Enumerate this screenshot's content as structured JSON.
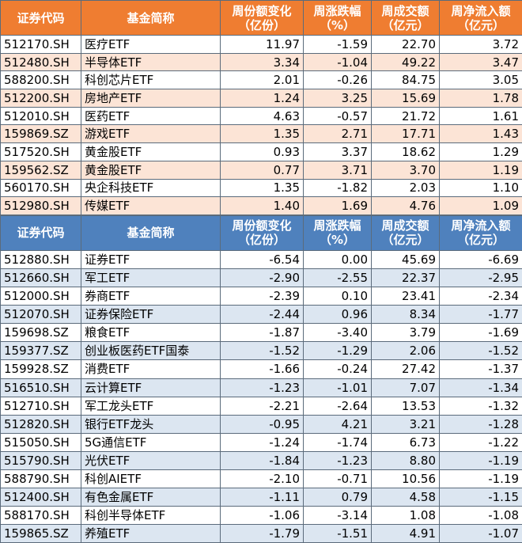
{
  "top_table": {
    "headers": [
      "证券代码",
      "基金简称",
      "周份额变化\n（亿份）",
      "周涨跌幅\n（%）",
      "周成交额\n（亿元）",
      "周净流入额\n（亿元）"
    ],
    "rows": [
      [
        "512170.SH",
        "医疗ETF",
        "11.97",
        "-1.59",
        "22.70",
        "3.72"
      ],
      [
        "512480.SH",
        "半导体ETF",
        "3.34",
        "-1.04",
        "49.22",
        "3.47"
      ],
      [
        "588200.SH",
        "科创芯片ETF",
        "2.01",
        "-0.26",
        "84.75",
        "3.05"
      ],
      [
        "512200.SH",
        "房地产ETF",
        "1.24",
        "3.25",
        "15.69",
        "1.78"
      ],
      [
        "512010.SH",
        "医药ETF",
        "4.63",
        "-0.57",
        "21.72",
        "1.61"
      ],
      [
        "159869.SZ",
        "游戏ETF",
        "1.35",
        "2.71",
        "17.71",
        "1.43"
      ],
      [
        "517520.SH",
        "黄金股ETF",
        "0.93",
        "3.37",
        "18.62",
        "1.29"
      ],
      [
        "159562.SZ",
        "黄金股ETF",
        "0.77",
        "3.71",
        "3.70",
        "1.19"
      ],
      [
        "560170.SH",
        "央企科技ETF",
        "1.35",
        "-1.82",
        "2.03",
        "1.10"
      ],
      [
        "512980.SH",
        "传媒ETF",
        "1.40",
        "1.69",
        "4.76",
        "1.09"
      ]
    ]
  },
  "bottom_table": {
    "headers": [
      "证券代码",
      "基金简称",
      "周份额变化\n（亿份）",
      "周涨跌幅\n（%）",
      "周成交额\n（亿元）",
      "周净流入额\n（亿元）"
    ],
    "rows": [
      [
        "512880.SH",
        "证券ETF",
        "-6.54",
        "0.00",
        "45.69",
        "-6.69"
      ],
      [
        "512660.SH",
        "军工ETF",
        "-2.90",
        "-2.55",
        "22.37",
        "-2.95"
      ],
      [
        "512000.SH",
        "券商ETF",
        "-2.39",
        "0.10",
        "23.41",
        "-2.34"
      ],
      [
        "512070.SH",
        "证券保险ETF",
        "-2.44",
        "0.96",
        "8.34",
        "-1.77"
      ],
      [
        "159698.SZ",
        "粮食ETF",
        "-1.87",
        "-3.40",
        "3.79",
        "-1.69"
      ],
      [
        "159377.SZ",
        "创业板医药ETF国泰",
        "-1.52",
        "-1.29",
        "2.06",
        "-1.52"
      ],
      [
        "159928.SZ",
        "消费ETF",
        "-1.66",
        "-0.24",
        "27.42",
        "-1.37"
      ],
      [
        "516510.SH",
        "云计算ETF",
        "-1.23",
        "-1.01",
        "7.07",
        "-1.34"
      ],
      [
        "512710.SH",
        "军工龙头ETF",
        "-2.21",
        "-2.64",
        "13.53",
        "-1.32"
      ],
      [
        "512820.SH",
        "银行ETF龙头",
        "-0.95",
        "4.21",
        "3.21",
        "-1.28"
      ],
      [
        "515050.SH",
        "5G通信ETF",
        "-1.24",
        "-1.74",
        "6.73",
        "-1.22"
      ],
      [
        "515790.SH",
        "光伏ETF",
        "-1.84",
        "-1.23",
        "8.80",
        "-1.19"
      ],
      [
        "588790.SH",
        "科创AIETF",
        "-2.10",
        "-0.71",
        "10.56",
        "-1.19"
      ],
      [
        "512400.SH",
        "有色金属ETF",
        "-1.11",
        "0.79",
        "4.58",
        "-1.15"
      ],
      [
        "588170.SH",
        "科创半导体ETF",
        "-1.06",
        "-3.14",
        "1.08",
        "-1.08"
      ],
      [
        "159865.SZ",
        "养殖ETF",
        "-1.79",
        "-1.51",
        "4.91",
        "-1.07"
      ]
    ]
  }
}
